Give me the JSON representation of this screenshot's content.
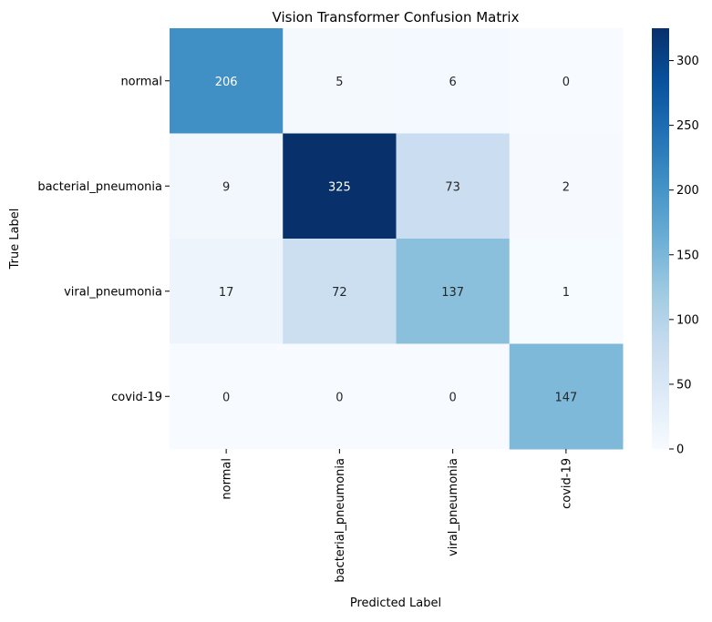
{
  "chart_data": {
    "type": "heatmap",
    "title": "Vision Transformer Confusion Matrix",
    "xlabel": "Predicted Label",
    "ylabel": "True Label",
    "x_categories": [
      "normal",
      "bacterial_pneumonia",
      "viral_pneumonia",
      "covid-19"
    ],
    "y_categories": [
      "normal",
      "bacterial_pneumonia",
      "viral_pneumonia",
      "covid-19"
    ],
    "values": [
      [
        206,
        5,
        6,
        0
      ],
      [
        9,
        325,
        73,
        2
      ],
      [
        17,
        72,
        137,
        1
      ],
      [
        0,
        0,
        0,
        147
      ]
    ],
    "colormap": "Blues",
    "colorbar": {
      "min": 0,
      "max": 325,
      "ticks": [
        0,
        50,
        100,
        150,
        200,
        250,
        300
      ]
    },
    "grid": false,
    "legend": "colorbar-right"
  }
}
